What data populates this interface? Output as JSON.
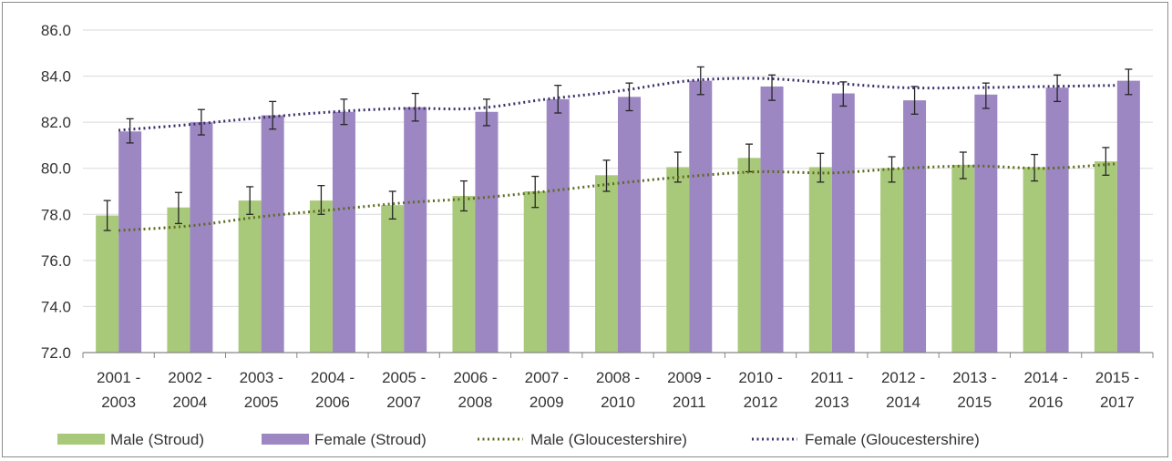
{
  "chart_data": {
    "type": "bar",
    "categories": [
      [
        "2001 -",
        "2003"
      ],
      [
        "2002 -",
        "2004"
      ],
      [
        "2003 -",
        "2005"
      ],
      [
        "2004 -",
        "2006"
      ],
      [
        "2005 -",
        "2007"
      ],
      [
        "2006 -",
        "2008"
      ],
      [
        "2007 -",
        "2009"
      ],
      [
        "2008 -",
        "2010"
      ],
      [
        "2009 -",
        "2011"
      ],
      [
        "2010 -",
        "2012"
      ],
      [
        "2011 -",
        "2013"
      ],
      [
        "2012 -",
        "2014"
      ],
      [
        "2013 -",
        "2015"
      ],
      [
        "2014 -",
        "2016"
      ],
      [
        "2015 -",
        "2017"
      ]
    ],
    "title": "",
    "xlabel": "",
    "ylabel": "",
    "ylim": [
      72,
      86
    ],
    "yticks": [
      "72.0",
      "74.0",
      "76.0",
      "78.0",
      "80.0",
      "82.0",
      "84.0",
      "86.0"
    ],
    "grid": true,
    "legend_position": "bottom",
    "bar_series": [
      {
        "name": "Male (Stroud)",
        "color": "#a9c97a",
        "values": [
          77.95,
          78.3,
          78.6,
          78.6,
          78.4,
          78.8,
          79.0,
          79.7,
          80.05,
          80.45,
          80.05,
          80.0,
          80.15,
          80.05,
          80.3
        ],
        "error_low": [
          77.3,
          77.6,
          78.0,
          78.0,
          77.8,
          78.15,
          78.3,
          79.0,
          79.4,
          79.85,
          79.4,
          79.4,
          79.55,
          79.45,
          79.7
        ],
        "error_high": [
          78.6,
          78.95,
          79.2,
          79.25,
          79.0,
          79.45,
          79.65,
          80.35,
          80.7,
          81.05,
          80.65,
          80.5,
          80.7,
          80.6,
          80.9
        ]
      },
      {
        "name": "Female (Stroud)",
        "color": "#9c87c2",
        "values": [
          81.6,
          82.0,
          82.3,
          82.45,
          82.65,
          82.45,
          83.0,
          83.1,
          83.8,
          83.55,
          83.25,
          82.95,
          83.2,
          83.5,
          83.8
        ],
        "error_low": [
          81.1,
          81.45,
          81.7,
          81.9,
          82.05,
          81.85,
          82.4,
          82.5,
          83.2,
          82.95,
          82.7,
          82.35,
          82.6,
          82.9,
          83.2
        ],
        "error_high": [
          82.15,
          82.55,
          82.9,
          83.0,
          83.25,
          83.0,
          83.6,
          83.7,
          84.4,
          84.05,
          83.75,
          83.55,
          83.7,
          84.05,
          84.3
        ]
      }
    ],
    "line_series": [
      {
        "name": "Male (Gloucestershire)",
        "color": "#5e6b20",
        "values": [
          77.3,
          77.5,
          77.9,
          78.2,
          78.5,
          78.7,
          79.0,
          79.35,
          79.65,
          79.85,
          79.8,
          80.0,
          80.1,
          80.0,
          80.2
        ]
      },
      {
        "name": "Female (Gloucestershire)",
        "color": "#3d2f6b",
        "values": [
          81.65,
          81.9,
          82.2,
          82.45,
          82.6,
          82.6,
          83.0,
          83.35,
          83.8,
          83.9,
          83.7,
          83.5,
          83.5,
          83.55,
          83.6
        ]
      }
    ]
  }
}
